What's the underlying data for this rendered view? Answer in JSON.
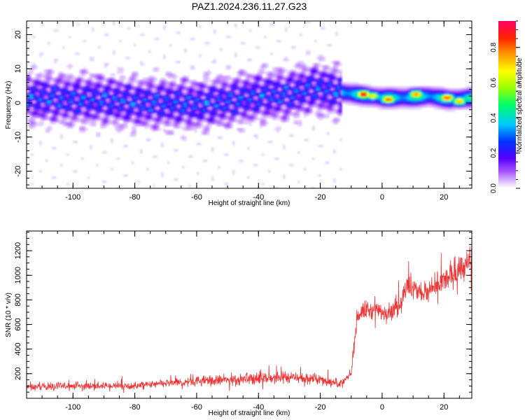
{
  "title": "PAZ1.2024.236.11.27.G23",
  "chart_data": [
    {
      "type": "heatmap",
      "xlabel": "Height of straight line (km)",
      "ylabel": "Frequency (Hz)",
      "xlim": [
        -115,
        29
      ],
      "ylim": [
        -25,
        24
      ],
      "xticks": [
        -100,
        -80,
        -60,
        -40,
        -20,
        0,
        20
      ],
      "yticks": [
        -20,
        -10,
        0,
        10,
        20
      ],
      "colorbar": {
        "label": "Normalized spectral amplitude",
        "range": [
          0,
          0.95
        ],
        "ticks": [
          0.0,
          0.2,
          0.4,
          0.6,
          0.8
        ],
        "tick_labels": [
          "0.0",
          "0.2",
          "0.4",
          "0.6",
          "0.8"
        ]
      },
      "ridge": [
        {
          "x": -112,
          "y": 1.5
        },
        {
          "x": -100,
          "y": 1.0
        },
        {
          "x": -90,
          "y": 1.0
        },
        {
          "x": -80,
          "y": 0.0
        },
        {
          "x": -70,
          "y": 0.0
        },
        {
          "x": -60,
          "y": -0.5
        },
        {
          "x": -50,
          "y": 0.5
        },
        {
          "x": -40,
          "y": 2.0
        },
        {
          "x": -30,
          "y": 2.5
        },
        {
          "x": -22,
          "y": 4.5
        },
        {
          "x": -13,
          "y": 3.0
        },
        {
          "x": -8,
          "y": 2.5
        },
        {
          "x": 0,
          "y": 1.5
        },
        {
          "x": 8,
          "y": 1.5
        },
        {
          "x": 15,
          "y": 2.0
        },
        {
          "x": 22,
          "y": 1.0
        },
        {
          "x": 29,
          "y": 1.5
        }
      ],
      "hotspots": [
        {
          "x": -6,
          "y": 2.5,
          "amp": 0.92
        },
        {
          "x": 2,
          "y": 1.0,
          "amp": 0.85
        },
        {
          "x": 11,
          "y": 2.5,
          "amp": 0.8
        },
        {
          "x": 21,
          "y": 1.5,
          "amp": 0.88
        },
        {
          "x": 25,
          "y": 0.5,
          "amp": 0.75
        },
        {
          "x": -3,
          "y": 2.0,
          "amp": 0.7
        }
      ]
    },
    {
      "type": "line",
      "xlabel": "Height of straight line (km)",
      "ylabel": "SNR (10 * v/v)",
      "xlim": [
        -115,
        29
      ],
      "ylim": [
        0,
        1360
      ],
      "xticks": [
        -100,
        -80,
        -60,
        -40,
        -20,
        0,
        20
      ],
      "yticks": [
        200,
        400,
        600,
        800,
        1000,
        1200
      ],
      "series": [
        {
          "color": "#ee3333",
          "x": [
            -115,
            -100,
            -80,
            -60,
            -50,
            -40,
            -30,
            -20,
            -13,
            -10,
            -8,
            -5,
            0,
            5,
            8,
            15,
            20,
            25,
            29
          ],
          "y": [
            90,
            100,
            100,
            140,
            150,
            160,
            170,
            150,
            120,
            200,
            680,
            720,
            700,
            730,
            900,
            850,
            950,
            1050,
            1100
          ]
        }
      ]
    }
  ]
}
